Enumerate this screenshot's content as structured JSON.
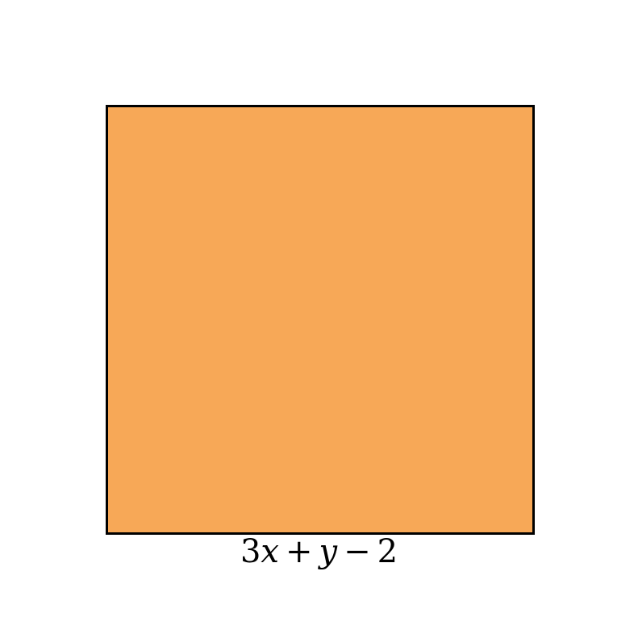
{
  "diagram": {
    "shape": "square",
    "fill_color": "#F7A857",
    "stroke_color": "#000000",
    "side_label": {
      "text": "3x + y − 2",
      "coef": "3",
      "var1": "x",
      "op1": "+",
      "var2": "y",
      "op2": "−",
      "const": "2"
    }
  }
}
